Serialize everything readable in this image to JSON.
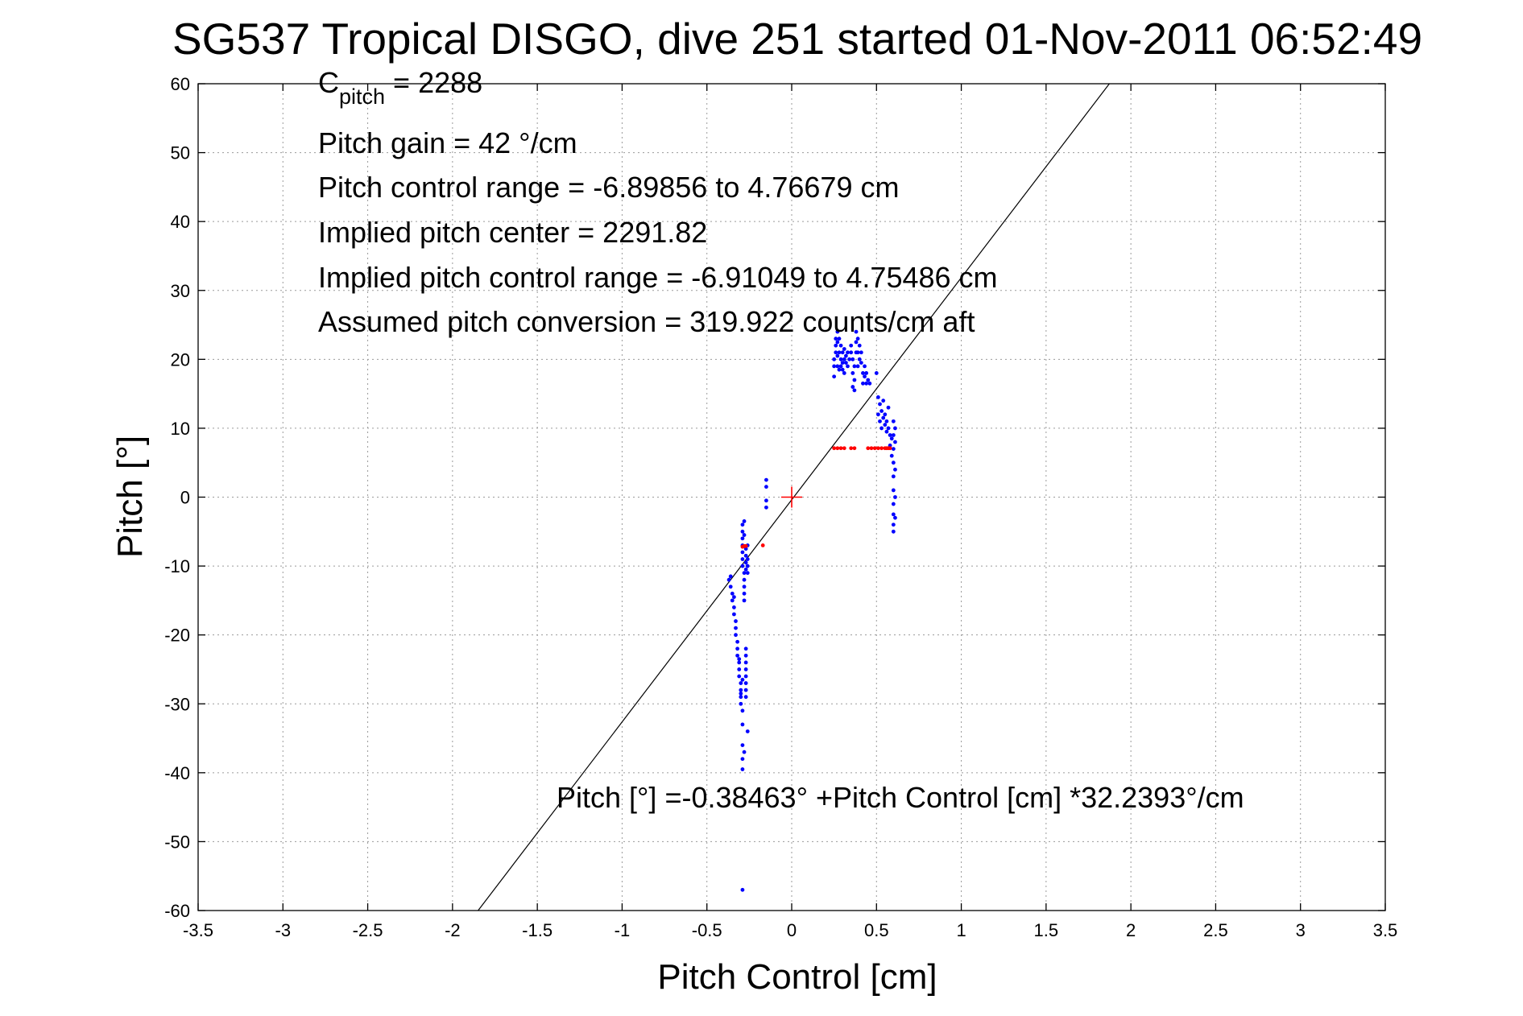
{
  "chart_data": {
    "type": "scatter",
    "title": "SG537 Tropical DISGO, dive 251 started 01-Nov-2011 06:52:49",
    "xlabel": "Pitch Control [cm]",
    "ylabel": "Pitch [°]",
    "xlim": [
      -3.5,
      3.5
    ],
    "ylim": [
      -60,
      60
    ],
    "xticks": [
      -3.5,
      -3,
      -2.5,
      -2,
      -1.5,
      -1,
      -0.5,
      0,
      0.5,
      1,
      1.5,
      2,
      2.5,
      3,
      3.5
    ],
    "yticks": [
      -60,
      -50,
      -40,
      -30,
      -20,
      -10,
      0,
      10,
      20,
      30,
      40,
      50,
      60
    ],
    "xtick_labels": [
      "-3.5",
      "-3",
      "-2.5",
      "-2",
      "-1.5",
      "-1",
      "-0.5",
      "0",
      "0.5",
      "1",
      "1.5",
      "2",
      "2.5",
      "3",
      "3.5"
    ],
    "ytick_labels": [
      "-60",
      "-50",
      "-40",
      "-30",
      "-20",
      "-10",
      "0",
      "10",
      "20",
      "30",
      "40",
      "50",
      "60"
    ],
    "grid": true,
    "colors": {
      "primary": "#0000ff",
      "secondary": "#ff0000",
      "fit_line": "#000000",
      "grid": "#9a9a9a"
    },
    "annotations": {
      "c_pitch_base": "C",
      "c_pitch_sub": "pitch",
      "c_pitch_value": " = 2288",
      "pitch_gain": "Pitch gain = 42 °/cm",
      "pitch_control_range": "Pitch control range = -6.89856 to 4.76679 cm",
      "implied_pitch_center": "Implied pitch center = 2291.82",
      "implied_pitch_control_range": "Implied pitch control range = -6.91049 to 4.75486 cm",
      "assumed_pitch_conversion": "Assumed pitch conversion = 319.922 counts/cm aft",
      "fit_equation": "Pitch [°] =-0.38463° +Pitch Control [cm] *32.2393°/cm"
    },
    "fit_line": {
      "intercept": -0.38463,
      "slope": 32.2393
    },
    "center_marker": {
      "x": 0,
      "y": 0
    },
    "series": [
      {
        "color": "#0000ff",
        "marker": "dot",
        "points": [
          [
            -0.37,
            -12
          ],
          [
            -0.36,
            -11.5
          ],
          [
            -0.36,
            -13
          ],
          [
            -0.35,
            -14
          ],
          [
            -0.35,
            -15
          ],
          [
            -0.34,
            -14.5
          ],
          [
            -0.34,
            -16
          ],
          [
            -0.34,
            -17
          ],
          [
            -0.33,
            -18
          ],
          [
            -0.33,
            -19
          ],
          [
            -0.33,
            -20
          ],
          [
            -0.32,
            -21
          ],
          [
            -0.32,
            -22
          ],
          [
            -0.32,
            -23
          ],
          [
            -0.31,
            -24
          ],
          [
            -0.31,
            -25
          ],
          [
            -0.31,
            -26
          ],
          [
            -0.3,
            -27
          ],
          [
            -0.3,
            -28
          ],
          [
            -0.3,
            -29
          ],
          [
            -0.3,
            -30
          ],
          [
            -0.29,
            -31
          ],
          [
            -0.29,
            -26.5
          ],
          [
            -0.31,
            -23.5
          ],
          [
            -0.3,
            -28.5
          ],
          [
            -0.29,
            -33
          ],
          [
            -0.29,
            -36
          ],
          [
            -0.29,
            -38
          ],
          [
            -0.29,
            -39.5
          ],
          [
            -0.28,
            -37
          ],
          [
            -0.29,
            -57
          ],
          [
            -0.27,
            -22
          ],
          [
            -0.27,
            -23
          ],
          [
            -0.27,
            -24
          ],
          [
            -0.27,
            -25
          ],
          [
            -0.27,
            -26
          ],
          [
            -0.27,
            -27
          ],
          [
            -0.27,
            -28
          ],
          [
            -0.27,
            -29
          ],
          [
            -0.26,
            -34
          ],
          [
            -0.29,
            -4
          ],
          [
            -0.29,
            -5
          ],
          [
            -0.29,
            -6
          ],
          [
            -0.29,
            -7
          ],
          [
            -0.29,
            -8
          ],
          [
            -0.29,
            -9
          ],
          [
            -0.29,
            -10
          ],
          [
            -0.28,
            -11
          ],
          [
            -0.28,
            -12
          ],
          [
            -0.28,
            -13
          ],
          [
            -0.28,
            -14
          ],
          [
            -0.28,
            -15
          ],
          [
            -0.27,
            -9.5
          ],
          [
            -0.27,
            -10.5
          ],
          [
            -0.27,
            -8.5
          ],
          [
            -0.26,
            -9
          ],
          [
            -0.26,
            -10
          ],
          [
            -0.26,
            -11
          ],
          [
            -0.28,
            -3.5
          ],
          [
            -0.28,
            -5.5
          ],
          [
            -0.27,
            -7.5
          ],
          [
            -0.26,
            -7
          ],
          [
            -0.15,
            2.5
          ],
          [
            -0.15,
            1.5
          ],
          [
            -0.15,
            -0.5
          ],
          [
            -0.15,
            -1.5
          ],
          [
            0.25,
            17.5
          ],
          [
            0.25,
            19
          ],
          [
            0.25,
            20
          ],
          [
            0.26,
            21
          ],
          [
            0.26,
            22
          ],
          [
            0.26,
            23
          ],
          [
            0.27,
            24
          ],
          [
            0.27,
            22.5
          ],
          [
            0.27,
            20.5
          ],
          [
            0.27,
            19
          ],
          [
            0.28,
            18.5
          ],
          [
            0.28,
            21
          ],
          [
            0.28,
            23
          ],
          [
            0.29,
            22
          ],
          [
            0.29,
            20
          ],
          [
            0.29,
            19
          ],
          [
            0.3,
            21
          ],
          [
            0.3,
            19.5
          ],
          [
            0.3,
            18.5
          ],
          [
            0.31,
            20
          ],
          [
            0.31,
            21.5
          ],
          [
            0.31,
            18
          ],
          [
            0.32,
            19.5
          ],
          [
            0.32,
            20.5
          ],
          [
            0.33,
            19
          ],
          [
            0.33,
            21
          ],
          [
            0.34,
            20
          ],
          [
            0.35,
            22
          ],
          [
            0.35,
            21
          ],
          [
            0.36,
            20
          ],
          [
            0.36,
            18
          ],
          [
            0.36,
            16
          ],
          [
            0.37,
            15.5
          ],
          [
            0.37,
            17
          ],
          [
            0.37,
            19
          ],
          [
            0.38,
            21
          ],
          [
            0.38,
            22.5
          ],
          [
            0.38,
            24
          ],
          [
            0.39,
            23
          ],
          [
            0.39,
            21
          ],
          [
            0.39,
            19
          ],
          [
            0.4,
            20
          ],
          [
            0.4,
            22
          ],
          [
            0.41,
            21
          ],
          [
            0.41,
            19.5
          ],
          [
            0.42,
            18
          ],
          [
            0.42,
            16.5
          ],
          [
            0.43,
            17.5
          ],
          [
            0.43,
            19
          ],
          [
            0.44,
            18
          ],
          [
            0.44,
            16.5
          ],
          [
            0.45,
            17
          ],
          [
            0.46,
            16.5
          ],
          [
            0.5,
            18
          ],
          [
            0.51,
            14.5
          ],
          [
            0.51,
            12
          ],
          [
            0.52,
            13.5
          ],
          [
            0.52,
            11
          ],
          [
            0.53,
            10
          ],
          [
            0.53,
            12.5
          ],
          [
            0.54,
            14
          ],
          [
            0.54,
            11.5
          ],
          [
            0.55,
            12
          ],
          [
            0.55,
            10.5
          ],
          [
            0.56,
            11
          ],
          [
            0.56,
            9.5
          ],
          [
            0.57,
            13
          ],
          [
            0.57,
            10
          ],
          [
            0.58,
            9
          ],
          [
            0.58,
            7.5
          ],
          [
            0.59,
            8.5
          ],
          [
            0.59,
            6
          ],
          [
            0.6,
            11
          ],
          [
            0.6,
            9
          ],
          [
            0.6,
            7
          ],
          [
            0.6,
            5
          ],
          [
            0.6,
            3
          ],
          [
            0.6,
            1
          ],
          [
            0.6,
            -1
          ],
          [
            0.6,
            -2.5
          ],
          [
            0.6,
            -4
          ],
          [
            0.6,
            -5
          ],
          [
            0.61,
            4
          ],
          [
            0.61,
            0
          ],
          [
            0.61,
            -3
          ],
          [
            0.61,
            8
          ],
          [
            0.61,
            10
          ]
        ]
      },
      {
        "color": "#ff0000",
        "marker": "dot",
        "points": [
          [
            -0.29,
            -7.2
          ],
          [
            -0.28,
            -7.1
          ],
          [
            -0.27,
            -7.1
          ],
          [
            -0.17,
            -7.0
          ],
          [
            0.25,
            7.1
          ],
          [
            0.27,
            7.1
          ],
          [
            0.29,
            7.1
          ],
          [
            0.31,
            7.1
          ],
          [
            0.35,
            7.1
          ],
          [
            0.37,
            7.1
          ],
          [
            0.45,
            7.1
          ],
          [
            0.47,
            7.1
          ],
          [
            0.49,
            7.1
          ],
          [
            0.51,
            7.1
          ],
          [
            0.53,
            7.1
          ],
          [
            0.55,
            7.1
          ],
          [
            0.56,
            7.1
          ],
          [
            0.57,
            7.1
          ],
          [
            0.58,
            7.1
          ]
        ]
      }
    ]
  }
}
